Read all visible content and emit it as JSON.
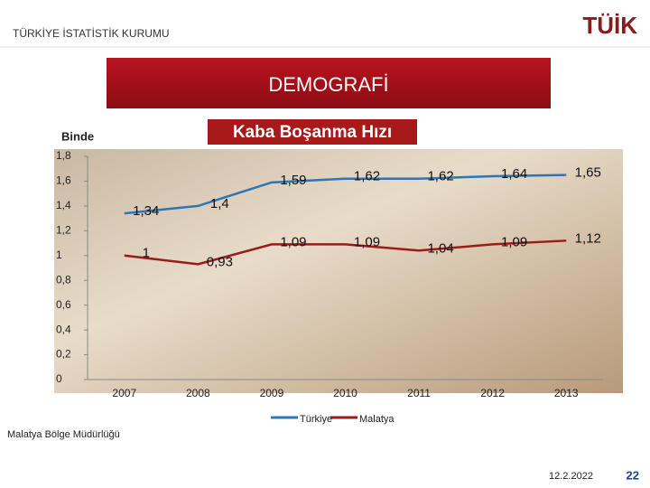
{
  "header": {
    "organization": "TÜRKİYE İSTATİSTİK KURUMU",
    "logo": "TÜİK"
  },
  "banner": "DEMOGRAFİ",
  "chart_data": {
    "type": "line",
    "title": "Kaba Boşanma Hızı",
    "y_label": "Binde",
    "categories": [
      "2007",
      "2008",
      "2009",
      "2010",
      "2011",
      "2012",
      "2013"
    ],
    "series": [
      {
        "name": "Türkiye",
        "color": "#2e75b6",
        "values": [
          1.34,
          1.4,
          1.59,
          1.62,
          1.62,
          1.64,
          1.65
        ],
        "value_labels": [
          "1,34",
          "1,4",
          "1,59",
          "1,62",
          "1,62",
          "1,64",
          "1,65"
        ]
      },
      {
        "name": "Malatya",
        "color": "#9b1b1b",
        "values": [
          1,
          0.93,
          1.09,
          1.09,
          1.04,
          1.09,
          1.12
        ],
        "value_labels": [
          "1",
          "0,93",
          "1,09",
          "1,09",
          "1,04",
          "1,09",
          "1,12"
        ]
      }
    ],
    "ylim": [
      0,
      1.8
    ],
    "yticks": [
      0,
      {
        "value": 0.2,
        "label": "0,2"
      },
      {
        "value": 0.4,
        "label": "0,4"
      },
      {
        "value": 0.6,
        "label": "0,6"
      },
      {
        "value": 0.8,
        "label": "0,8"
      },
      1,
      {
        "value": 1.2,
        "label": "1,2"
      },
      {
        "value": 1.4,
        "label": "1,4"
      },
      {
        "value": 1.6,
        "label": "1,6"
      },
      {
        "value": 1.8,
        "label": "1,8"
      }
    ],
    "legend": "bottom"
  },
  "footer": {
    "office": "Malatya Bölge Müdürlüğü",
    "date": "12.2.2022",
    "page": "22"
  }
}
